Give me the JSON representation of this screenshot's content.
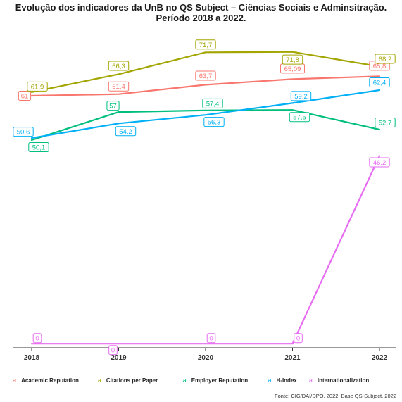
{
  "chart_data": {
    "type": "line",
    "title_line1": "Evolução dos indicadores da UnB no QS Subject – Ciências Sociais e Adminsitração.",
    "title_line2": "Período 2018 a 2022.",
    "x": [
      "2018",
      "2019",
      "2020",
      "2021",
      "2022"
    ],
    "xlabel": "",
    "ylabel": "",
    "ylim": [
      -1,
      78.5
    ],
    "grid": false,
    "legend_position": "bottom",
    "source": "Fonte: CIG/DAI/DPO, 2022. Base QS-Subject, 2022",
    "series": [
      {
        "name": "Academic Reputation",
        "color": "#F8766D",
        "values": [
          61,
          61.4,
          63.7,
          65.09,
          65.8
        ],
        "labels": [
          "61",
          "61,4",
          "63,7",
          "65,09",
          "65,8"
        ]
      },
      {
        "name": "Citations per Paper",
        "color": "#A3A500",
        "values": [
          61.9,
          66.3,
          71.7,
          71.8,
          68.2
        ],
        "labels": [
          "61,9",
          "66,3",
          "71,7",
          "71,8",
          "68,2"
        ]
      },
      {
        "name": "Employer Reputation",
        "color": "#00BF7D",
        "values": [
          50.1,
          57,
          57.4,
          57.5,
          52.7
        ],
        "labels": [
          "50,1",
          "57",
          "57,4",
          "57,5",
          "52,7"
        ]
      },
      {
        "name": "H-Index",
        "color": "#00B0F6",
        "values": [
          50.6,
          54.2,
          56.3,
          59.2,
          62.4
        ],
        "labels": [
          "50,6",
          "54,2",
          "56,3",
          "59,2",
          "62,4"
        ]
      },
      {
        "name": "Internationalization",
        "color": "#E76BF3",
        "values": [
          0,
          0,
          0,
          0,
          46.2
        ],
        "labels": [
          "0",
          "0",
          "0",
          "0",
          "46,2"
        ]
      }
    ]
  }
}
